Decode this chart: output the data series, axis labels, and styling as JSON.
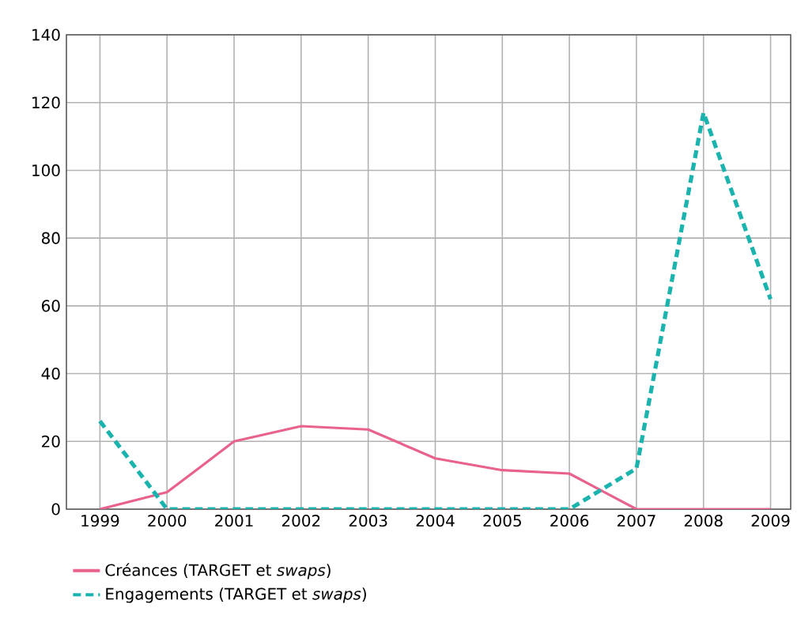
{
  "chart_data": {
    "type": "line",
    "x": [
      1999,
      2000,
      2001,
      2002,
      2003,
      2004,
      2005,
      2006,
      2007,
      2008,
      2009
    ],
    "series": [
      {
        "name": "Créances (TARGET et *swaps*)",
        "color": "#e8628c",
        "line_style": "solid",
        "values": [
          0,
          5,
          20,
          24.5,
          23.5,
          15,
          11.5,
          10.5,
          0,
          0,
          0
        ]
      },
      {
        "name": "Engagements (TARGET et *swaps*)",
        "color": "#1bb3ad",
        "line_style": "dashed",
        "values": [
          26,
          0,
          0,
          0,
          0,
          0,
          0,
          0,
          12,
          117,
          62
        ]
      }
    ],
    "xlim": [
      1998.5,
      2009.3
    ],
    "ylim": [
      0,
      140
    ],
    "xticks": [
      1999,
      2000,
      2001,
      2002,
      2003,
      2004,
      2005,
      2006,
      2007,
      2008,
      2009
    ],
    "yticks": [
      0,
      20,
      40,
      60,
      80,
      100,
      120,
      140
    ],
    "grid": true,
    "legend": "bottom",
    "marker": "none"
  }
}
